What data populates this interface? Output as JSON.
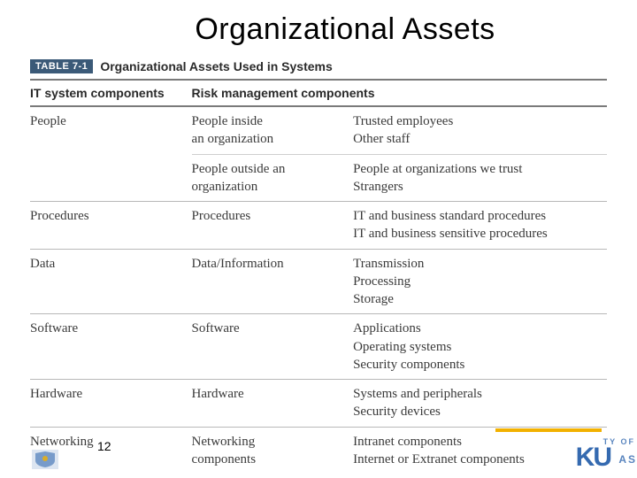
{
  "title": "Organizational Assets",
  "table": {
    "badge": "TABLE 7-1",
    "caption": "Organizational Assets Used in Systems",
    "headers": {
      "col1": "IT system components",
      "col2": "Risk management components",
      "col3": ""
    },
    "rows": [
      {
        "c1": "People",
        "c2": "People inside\nan organization",
        "c3": "Trusted employees\nOther staff",
        "subsep": true
      },
      {
        "c1": "",
        "c2": "People outside an\norganization",
        "c3": "People at organizations we trust\nStrangers",
        "groupsep": true
      },
      {
        "c1": "Procedures",
        "c2": "Procedures",
        "c3": "IT and business standard procedures\nIT and business sensitive procedures",
        "groupsep": true
      },
      {
        "c1": "Data",
        "c2": "Data/Information",
        "c3": "Transmission\nProcessing\nStorage",
        "groupsep": true
      },
      {
        "c1": "Software",
        "c2": "Software",
        "c3": "Applications\nOperating systems\nSecurity components",
        "groupsep": true
      },
      {
        "c1": "Hardware",
        "c2": "Hardware",
        "c3": "Systems and peripherals\nSecurity devices",
        "groupsep": true
      },
      {
        "c1": "Networking",
        "c2": "Networking\ncomponents",
        "c3": "Intranet components\nInternet or Extranet components",
        "groupsep": false
      }
    ]
  },
  "page_number": "12",
  "colors": {
    "badge_bg": "#3b5a78",
    "accent_bar": "#f2b100",
    "logo": "#1251a3",
    "rule_strong": "#7a7a7a",
    "rule_light": "#b8b8b8"
  },
  "footer": {
    "logo_text": "KU",
    "logo_suffix": "AS",
    "suffix_line": "TY OF"
  }
}
